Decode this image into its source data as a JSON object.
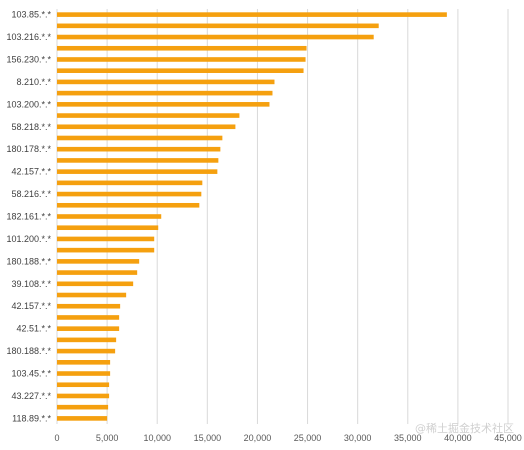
{
  "watermark": "@稀土掘金技术社区",
  "colors": {
    "bar": "#F5A00F",
    "grid": "#D9D9D9",
    "background": "#FFFFFF"
  },
  "chart_data": {
    "type": "bar",
    "orientation": "horizontal",
    "title": "",
    "xlabel": "",
    "ylabel": "",
    "xlim": [
      0,
      45000
    ],
    "x_ticks": [
      0,
      5000,
      10000,
      15000,
      20000,
      25000,
      30000,
      35000,
      40000,
      45000
    ],
    "x_tick_labels": [
      "0",
      "5,000",
      "10,000",
      "15,000",
      "20,000",
      "25,000",
      "30,000",
      "35,000",
      "40,000",
      "45,000"
    ],
    "grid": "vertical",
    "legend": "none",
    "categories": [
      "103.85.*.*",
      "",
      "103.216.*.*",
      "",
      "156.230.*.*",
      "",
      "8.210.*.*",
      "",
      "103.200.*.*",
      "",
      "58.218.*.*",
      "",
      "180.178.*.*",
      "",
      "42.157.*.*",
      "",
      "58.216.*.*",
      "",
      "182.161.*.*",
      "",
      "101.200.*.*",
      "",
      "180.188.*.*",
      "",
      "39.108.*.*",
      "",
      "42.157.*.*",
      "",
      "42.51.*.*",
      "",
      "180.188.*.*",
      "",
      "103.45.*.*",
      "",
      "43.227.*.*",
      "",
      "118.89.*.*"
    ],
    "values": [
      38900,
      32100,
      31600,
      24900,
      24800,
      24600,
      21700,
      21500,
      21200,
      18200,
      17800,
      16500,
      16300,
      16100,
      16000,
      14500,
      14400,
      14200,
      10400,
      10100,
      9700,
      9700,
      8200,
      8000,
      7600,
      6900,
      6300,
      6200,
      6200,
      5900,
      5800,
      5300,
      5300,
      5200,
      5200,
      5100,
      5000
    ]
  }
}
